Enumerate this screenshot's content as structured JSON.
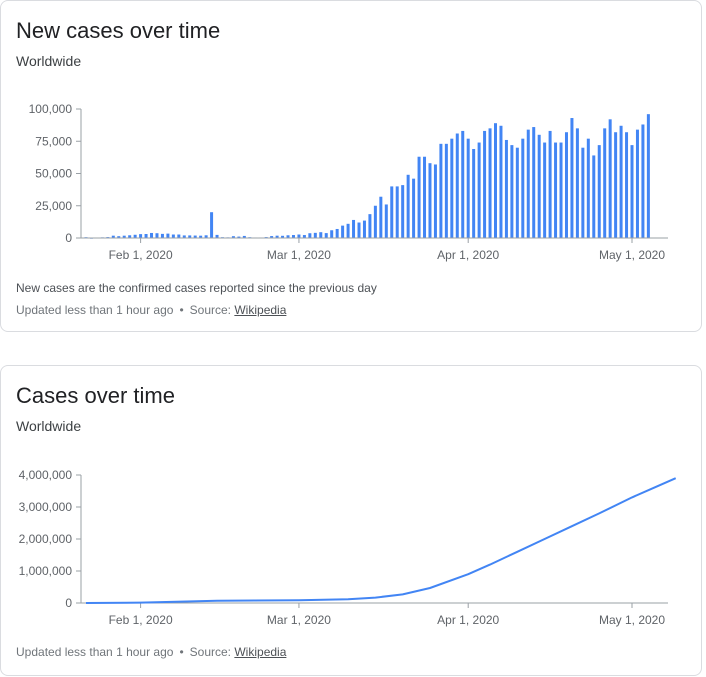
{
  "colors": {
    "series": "#4285f4",
    "axis": "#9aa0a6",
    "text": "#5f6368"
  },
  "cards": [
    {
      "title": "New cases over time",
      "subtitle": "Worldwide",
      "note": "New cases are the confirmed cases reported since the previous day",
      "updated": "Updated less than 1 hour ago",
      "source_label": "Source:",
      "source_link": "Wikipedia"
    },
    {
      "title": "Cases over time",
      "subtitle": "Worldwide",
      "updated": "Updated less than 1 hour ago",
      "source_label": "Source:",
      "source_link": "Wikipedia"
    }
  ],
  "chart_data": [
    {
      "type": "bar",
      "title": "New cases over time",
      "subtitle": "Worldwide",
      "x_ticks": [
        "Feb 1, 2020",
        "Mar 1, 2020",
        "Apr 1, 2020",
        "May 1, 2020"
      ],
      "y_ticks": [
        "100,000",
        "75,000",
        "50,000",
        "25,000",
        "0"
      ],
      "ylim": [
        0,
        100000
      ],
      "grid": false,
      "x_start": "Jan 22, 2020",
      "values": [
        600,
        100,
        300,
        500,
        700,
        1800,
        1400,
        1800,
        2100,
        2500,
        3000,
        3100,
        3900,
        3700,
        3200,
        3400,
        2700,
        2700,
        2000,
        2000,
        1900,
        1800,
        2100,
        20000,
        2400,
        600,
        500,
        1400,
        1100,
        1600,
        600,
        400,
        400,
        700,
        1500,
        1800,
        1700,
        2100,
        2300,
        2700,
        2300,
        3700,
        4000,
        4500,
        3800,
        6000,
        7000,
        9600,
        11000,
        14000,
        12000,
        13500,
        18500,
        25000,
        32000,
        26000,
        40000,
        40000,
        41000,
        49000,
        46000,
        63000,
        63000,
        58000,
        57000,
        73000,
        73000,
        77000,
        81000,
        83000,
        77000,
        69000,
        74000,
        83000,
        85000,
        89000,
        87000,
        76000,
        72000,
        70000,
        77000,
        84000,
        86000,
        80000,
        74000,
        83000,
        74000,
        74000,
        82000,
        93000,
        85000,
        70000,
        77000,
        64000,
        72000,
        85000,
        92000,
        82000,
        87000,
        82000,
        72000,
        84000,
        88000,
        96000
      ]
    },
    {
      "type": "line",
      "title": "Cases over time",
      "subtitle": "Worldwide",
      "x_ticks": [
        "Feb 1, 2020",
        "Mar 1, 2020",
        "Apr 1, 2020",
        "May 1, 2020"
      ],
      "y_ticks": [
        "4,000,000",
        "3,000,000",
        "2,000,000",
        "1,000,000",
        "0"
      ],
      "ylim": [
        0,
        4000000
      ],
      "grid": false,
      "series": [
        {
          "x": [
            "Jan 22, 2020",
            "Feb 1, 2020",
            "Feb 15, 2020",
            "Mar 1, 2020",
            "Mar 10, 2020",
            "Mar 15, 2020",
            "Mar 20, 2020",
            "Mar 25, 2020",
            "Apr 1, 2020",
            "Apr 5, 2020",
            "Apr 10, 2020",
            "Apr 15, 2020",
            "Apr 20, 2020",
            "Apr 25, 2020",
            "May 1, 2020",
            "May 5, 2020",
            "May 9, 2020"
          ],
          "values": [
            600,
            12000,
            69000,
            89000,
            120000,
            170000,
            270000,
            470000,
            900000,
            1200000,
            1600000,
            2000000,
            2400000,
            2800000,
            3300000,
            3600000,
            3900000
          ]
        }
      ]
    }
  ]
}
